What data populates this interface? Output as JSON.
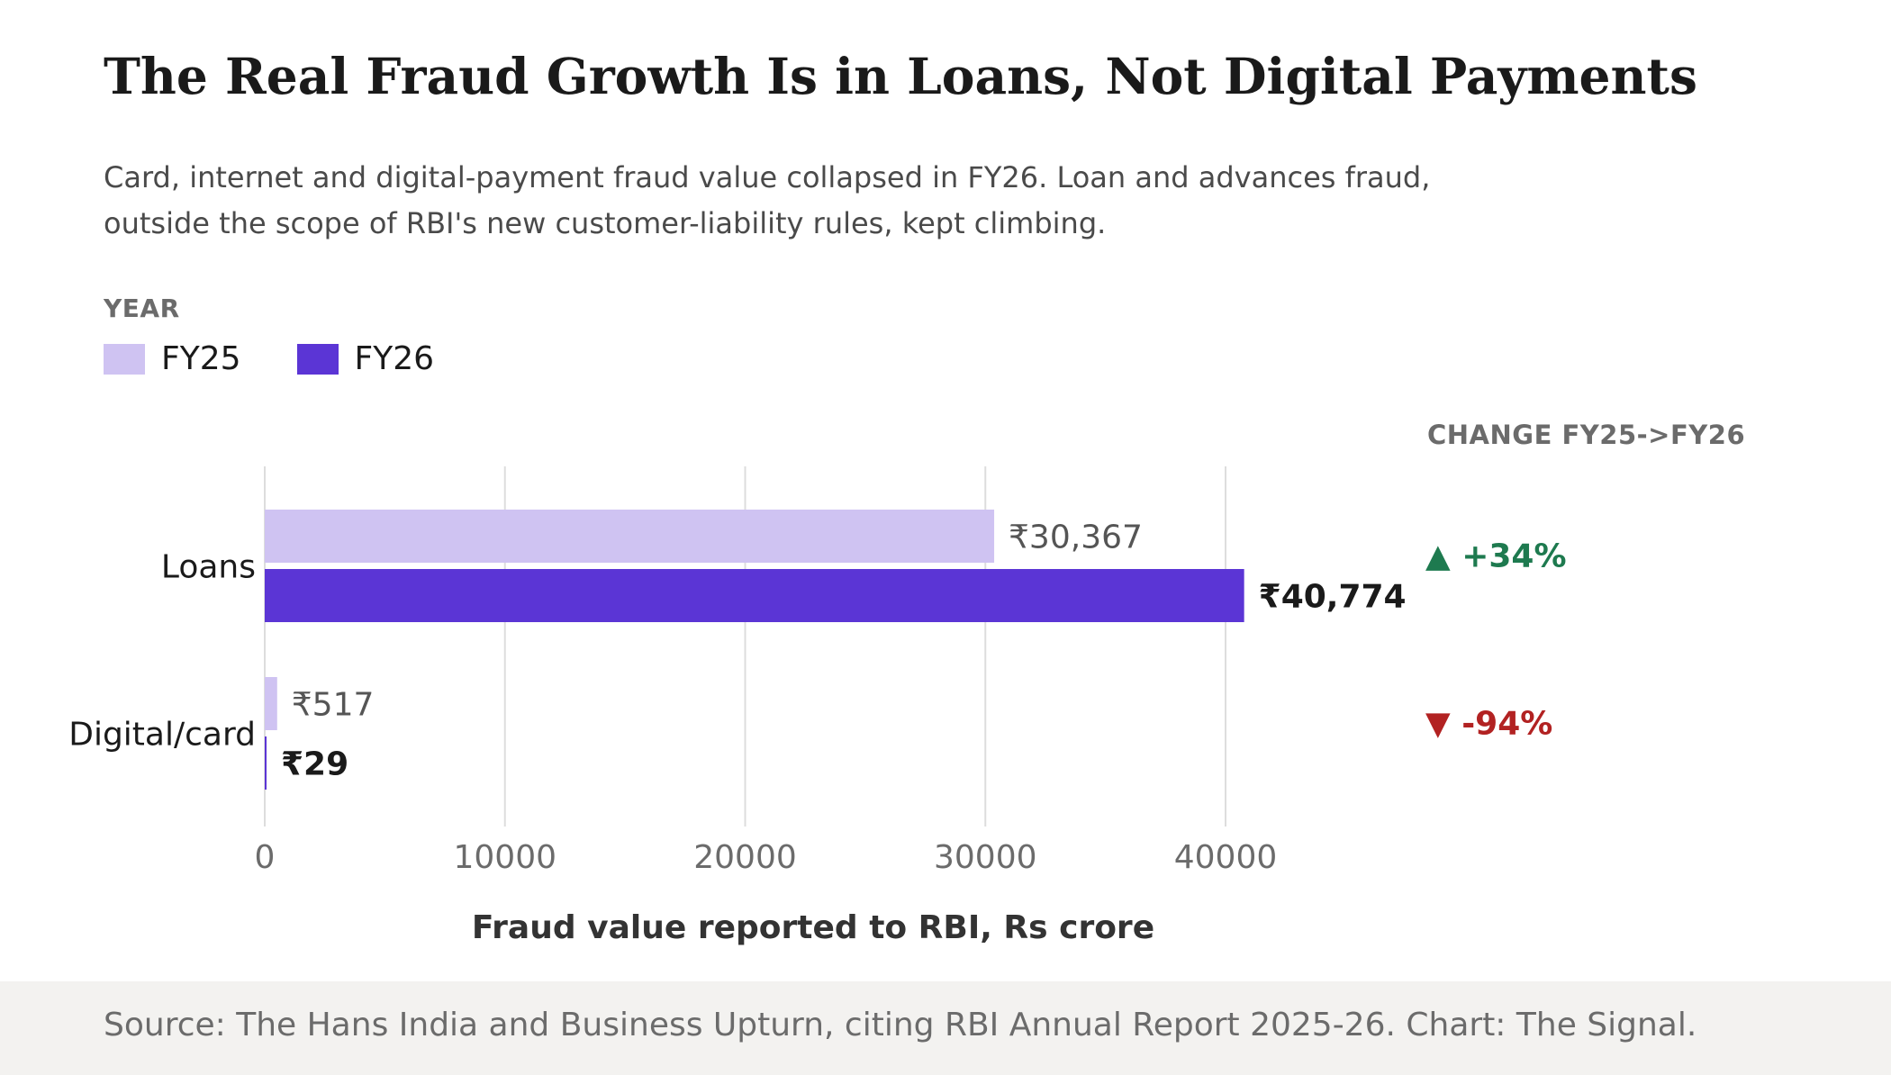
{
  "title": "The Real Fraud Growth Is in Loans, Not Digital Payments",
  "subtitle": "Card, internet and digital-payment fraud value collapsed in FY26. Loan and advances fraud, outside the scope of RBI's new customer-liability rules, kept climbing.",
  "legend": {
    "heading": "YEAR",
    "items": [
      {
        "label": "FY25",
        "color": "#cfc3f2"
      },
      {
        "label": "FY26",
        "color": "#5b35d5"
      }
    ]
  },
  "change_heading": "CHANGE FY25->FY26",
  "source": "Source: The Hans India and Business Upturn, citing RBI Annual Report 2025-26. Chart: The Signal.",
  "colors": {
    "up": "#1e7a4f",
    "down": "#b22222",
    "grid": "#dddddd"
  },
  "chart_data": {
    "type": "bar",
    "orientation": "horizontal",
    "categories": [
      "Loans",
      "Digital/card"
    ],
    "series": [
      {
        "name": "FY25",
        "values": [
          30367,
          517
        ],
        "labels": [
          "₹30,367",
          "₹517"
        ]
      },
      {
        "name": "FY26",
        "values": [
          40774,
          29
        ],
        "labels": [
          "₹40,774",
          "₹29"
        ]
      }
    ],
    "changes": [
      {
        "label": "▲ +34%",
        "direction": "up"
      },
      {
        "label": "▼ -94%",
        "direction": "down"
      }
    ],
    "xlabel": "Fraud value reported to RBI, Rs crore",
    "xticks": [
      0,
      10000,
      20000,
      30000,
      40000
    ],
    "xlim": [
      0,
      48000
    ],
    "grid": true,
    "legend_position": "top-left"
  }
}
